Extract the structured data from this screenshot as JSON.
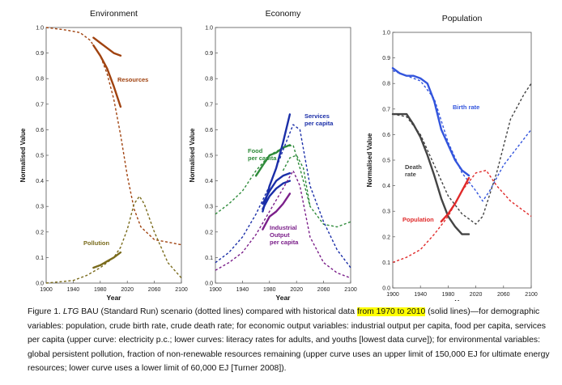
{
  "caption": {
    "figure_label": "Figure 1.",
    "ltg": "LTG",
    "part1": " BAU (Standard Run) scenario (dotted lines) compared with historical data ",
    "highlight": "from 1970 to 2010",
    "part2": " (solid lines)—for demographic variables: population, crude birth rate, crude death rate; for economic output variables: industrial output per capita, food per capita, services per capita (upper curve: electricity p.c.; lower curves: literacy rates for adults, and youths [lowest data curve]); for environmental variables: global persistent pollution, fraction of non-renewable resources remaining (upper curve uses an upper limit of 150,000 EJ for ultimate energy resources; lower curve uses a lower limit of 60,000 EJ [Turner 2008])."
  },
  "colors": {
    "resources": "#a0420f",
    "pollution": "#7a6b1c",
    "food": "#2e8b3a",
    "services": "#1a2ea8",
    "industrial": "#7b1f8a",
    "birth_rate": "#3355dd",
    "death_rate": "#444444",
    "population": "#e02a2a",
    "highlight": "#ffff00"
  },
  "chart_data": [
    {
      "type": "line",
      "title": "Environment",
      "xlabel": "Year",
      "ylabel": "Normalised Value",
      "xlim": [
        1900,
        2100
      ],
      "ylim": [
        0,
        1.0
      ],
      "xticks": [
        "1900",
        "1940",
        "1980",
        "2020",
        "2060",
        "2100"
      ],
      "yticks": [
        "0.0",
        "0.1",
        "0.2",
        "0.3",
        "0.4",
        "0.5",
        "0.6",
        "0.7",
        "0.8",
        "0.9",
        "1.0"
      ],
      "annotations": [
        "Resources",
        "Pollution"
      ],
      "series": [
        {
          "name": "Resources",
          "color": "resources",
          "style": "dotted",
          "points": [
            [
              1900,
              1.0
            ],
            [
              1930,
              0.99
            ],
            [
              1950,
              0.98
            ],
            [
              1965,
              0.95
            ],
            [
              1980,
              0.89
            ],
            [
              1990,
              0.82
            ],
            [
              2000,
              0.72
            ],
            [
              2010,
              0.58
            ],
            [
              2020,
              0.42
            ],
            [
              2030,
              0.29
            ],
            [
              2040,
              0.22
            ],
            [
              2060,
              0.17
            ],
            [
              2080,
              0.16
            ],
            [
              2100,
              0.15
            ]
          ]
        },
        {
          "style": "solid",
          "color": "resources",
          "points": [
            [
              1970,
              0.96
            ],
            [
              1980,
              0.94
            ],
            [
              1990,
              0.92
            ],
            [
              2000,
              0.9
            ],
            [
              2010,
              0.89
            ]
          ]
        },
        {
          "style": "solid",
          "color": "resources",
          "points": [
            [
              1970,
              0.93
            ],
            [
              1980,
              0.89
            ],
            [
              1990,
              0.84
            ],
            [
              2000,
              0.77
            ],
            [
              2010,
              0.69
            ]
          ]
        },
        {
          "name": "Pollution",
          "color": "pollution",
          "style": "dotted",
          "points": [
            [
              1900,
              0.0
            ],
            [
              1940,
              0.01
            ],
            [
              1960,
              0.03
            ],
            [
              1980,
              0.06
            ],
            [
              2000,
              0.1
            ],
            [
              2010,
              0.14
            ],
            [
              2020,
              0.21
            ],
            [
              2030,
              0.31
            ],
            [
              2038,
              0.34
            ],
            [
              2045,
              0.31
            ],
            [
              2060,
              0.2
            ],
            [
              2080,
              0.08
            ],
            [
              2100,
              0.02
            ]
          ]
        },
        {
          "style": "solid",
          "color": "pollution",
          "points": [
            [
              1970,
              0.06
            ],
            [
              1980,
              0.07
            ],
            [
              1990,
              0.085
            ],
            [
              2000,
              0.1
            ],
            [
              2010,
              0.12
            ]
          ]
        }
      ]
    },
    {
      "type": "line",
      "title": "Economy",
      "xlabel": "Year",
      "ylabel": "Normalised Value",
      "xlim": [
        1900,
        2100
      ],
      "ylim": [
        0,
        1.0
      ],
      "xticks": [
        "1900",
        "1940",
        "1980",
        "2020",
        "2060",
        "2100"
      ],
      "yticks": [
        "0.0",
        "0.1",
        "0.2",
        "0.3",
        "0.4",
        "0.5",
        "0.6",
        "0.7",
        "0.8",
        "0.9",
        "1.0"
      ],
      "annotations": [
        "Food per capita",
        "Services per capita",
        "Industrial Output per capita"
      ],
      "series": [
        {
          "name": "Food per capita",
          "color": "food",
          "style": "dotted",
          "points": [
            [
              1900,
              0.27
            ],
            [
              1920,
              0.31
            ],
            [
              1940,
              0.36
            ],
            [
              1960,
              0.44
            ],
            [
              1980,
              0.5
            ],
            [
              2000,
              0.53
            ],
            [
              2015,
              0.54
            ],
            [
              2025,
              0.45
            ],
            [
              2040,
              0.3
            ],
            [
              2060,
              0.23
            ],
            [
              2080,
              0.22
            ],
            [
              2100,
              0.24
            ]
          ]
        },
        {
          "style": "solid",
          "color": "food",
          "points": [
            [
              1960,
              0.42
            ],
            [
              1970,
              0.46
            ],
            [
              1980,
              0.5
            ],
            [
              1990,
              0.51
            ],
            [
              2000,
              0.53
            ],
            [
              2010,
              0.54
            ]
          ]
        },
        {
          "name": "Services per capita",
          "color": "services",
          "style": "dotted",
          "points": [
            [
              1900,
              0.08
            ],
            [
              1920,
              0.12
            ],
            [
              1940,
              0.18
            ],
            [
              1960,
              0.27
            ],
            [
              1980,
              0.38
            ],
            [
              2000,
              0.52
            ],
            [
              2015,
              0.62
            ],
            [
              2025,
              0.6
            ],
            [
              2040,
              0.38
            ],
            [
              2060,
              0.24
            ],
            [
              2080,
              0.13
            ],
            [
              2100,
              0.06
            ]
          ]
        },
        {
          "style": "solid",
          "color": "services",
          "points": [
            [
              1970,
              0.28
            ],
            [
              1980,
              0.38
            ],
            [
              1990,
              0.45
            ],
            [
              2000,
              0.55
            ],
            [
              2010,
              0.66
            ]
          ]
        },
        {
          "style": "solid",
          "color": "services",
          "points": [
            [
              1970,
              0.31
            ],
            [
              1980,
              0.36
            ],
            [
              1990,
              0.4
            ],
            [
              2000,
              0.42
            ],
            [
              2010,
              0.43
            ]
          ]
        },
        {
          "style": "solid",
          "color": "services",
          "points": [
            [
              1970,
              0.29
            ],
            [
              1980,
              0.34
            ],
            [
              1990,
              0.37
            ],
            [
              2000,
              0.39
            ],
            [
              2010,
              0.4
            ]
          ]
        },
        {
          "name": "Industrial Output per capita",
          "color": "industrial",
          "style": "dotted",
          "points": [
            [
              1900,
              0.05
            ],
            [
              1920,
              0.08
            ],
            [
              1940,
              0.12
            ],
            [
              1960,
              0.19
            ],
            [
              1980,
              0.28
            ],
            [
              2000,
              0.37
            ],
            [
              2015,
              0.44
            ],
            [
              2025,
              0.38
            ],
            [
              2040,
              0.18
            ],
            [
              2060,
              0.08
            ],
            [
              2080,
              0.04
            ],
            [
              2100,
              0.02
            ]
          ]
        },
        {
          "style": "solid",
          "color": "industrial",
          "points": [
            [
              1970,
              0.21
            ],
            [
              1980,
              0.26
            ],
            [
              1990,
              0.28
            ],
            [
              2000,
              0.31
            ],
            [
              2010,
              0.35
            ]
          ]
        },
        {
          "style": "dotted",
          "color": "food",
          "points": [
            [
              2000,
              0.44
            ],
            [
              2010,
              0.49
            ],
            [
              2020,
              0.5
            ],
            [
              2030,
              0.45
            ],
            [
              2040,
              0.3
            ]
          ]
        }
      ]
    },
    {
      "type": "line",
      "title": "Population",
      "xlabel": "Year",
      "ylabel": "Normalised Value",
      "xlim": [
        1900,
        2100
      ],
      "ylim": [
        0,
        1.0
      ],
      "xticks": [
        "1900",
        "1940",
        "1980",
        "2020",
        "2060",
        "2100"
      ],
      "yticks": [
        "0.0",
        "0.1",
        "0.2",
        "0.3",
        "0.4",
        "0.5",
        "0.6",
        "0.7",
        "0.8",
        "0.9",
        "1.0"
      ],
      "annotations": [
        "Birth rate",
        "Death rate",
        "Population"
      ],
      "series": [
        {
          "name": "Birth rate",
          "color": "birth_rate",
          "style": "dotted",
          "points": [
            [
              1900,
              0.85
            ],
            [
              1920,
              0.83
            ],
            [
              1940,
              0.81
            ],
            [
              1960,
              0.74
            ],
            [
              1980,
              0.57
            ],
            [
              2000,
              0.45
            ],
            [
              2020,
              0.38
            ],
            [
              2030,
              0.34
            ],
            [
              2040,
              0.38
            ],
            [
              2060,
              0.48
            ],
            [
              2080,
              0.55
            ],
            [
              2100,
              0.62
            ]
          ]
        },
        {
          "style": "solid",
          "color": "birth_rate",
          "points": [
            [
              1900,
              0.86
            ],
            [
              1910,
              0.84
            ],
            [
              1920,
              0.83
            ],
            [
              1930,
              0.83
            ],
            [
              1940,
              0.82
            ],
            [
              1950,
              0.8
            ],
            [
              1960,
              0.73
            ],
            [
              1970,
              0.62
            ],
            [
              1980,
              0.56
            ],
            [
              1990,
              0.5
            ],
            [
              2000,
              0.46
            ],
            [
              2010,
              0.44
            ]
          ]
        },
        {
          "name": "Death rate",
          "color": "death_rate",
          "style": "dotted",
          "points": [
            [
              1900,
              0.68
            ],
            [
              1920,
              0.67
            ],
            [
              1940,
              0.6
            ],
            [
              1960,
              0.48
            ],
            [
              1980,
              0.36
            ],
            [
              2000,
              0.29
            ],
            [
              2020,
              0.25
            ],
            [
              2030,
              0.28
            ],
            [
              2050,
              0.45
            ],
            [
              2070,
              0.66
            ],
            [
              2090,
              0.76
            ],
            [
              2100,
              0.8
            ]
          ]
        },
        {
          "style": "solid",
          "color": "death_rate",
          "points": [
            [
              1900,
              0.68
            ],
            [
              1920,
              0.68
            ],
            [
              1930,
              0.64
            ],
            [
              1940,
              0.59
            ],
            [
              1950,
              0.52
            ],
            [
              1960,
              0.44
            ],
            [
              1970,
              0.35
            ],
            [
              1980,
              0.28
            ],
            [
              1990,
              0.24
            ],
            [
              2000,
              0.21
            ],
            [
              2010,
              0.21
            ]
          ]
        },
        {
          "name": "Population",
          "color": "population",
          "style": "dotted",
          "points": [
            [
              1900,
              0.1
            ],
            [
              1920,
              0.12
            ],
            [
              1940,
              0.15
            ],
            [
              1960,
              0.21
            ],
            [
              1980,
              0.28
            ],
            [
              2000,
              0.38
            ],
            [
              2020,
              0.45
            ],
            [
              2035,
              0.46
            ],
            [
              2050,
              0.4
            ],
            [
              2070,
              0.34
            ],
            [
              2090,
              0.3
            ],
            [
              2100,
              0.28
            ]
          ]
        },
        {
          "style": "solid",
          "color": "population",
          "points": [
            [
              1970,
              0.26
            ],
            [
              1980,
              0.29
            ],
            [
              1990,
              0.33
            ],
            [
              2000,
              0.38
            ],
            [
              2010,
              0.43
            ]
          ]
        }
      ]
    }
  ]
}
